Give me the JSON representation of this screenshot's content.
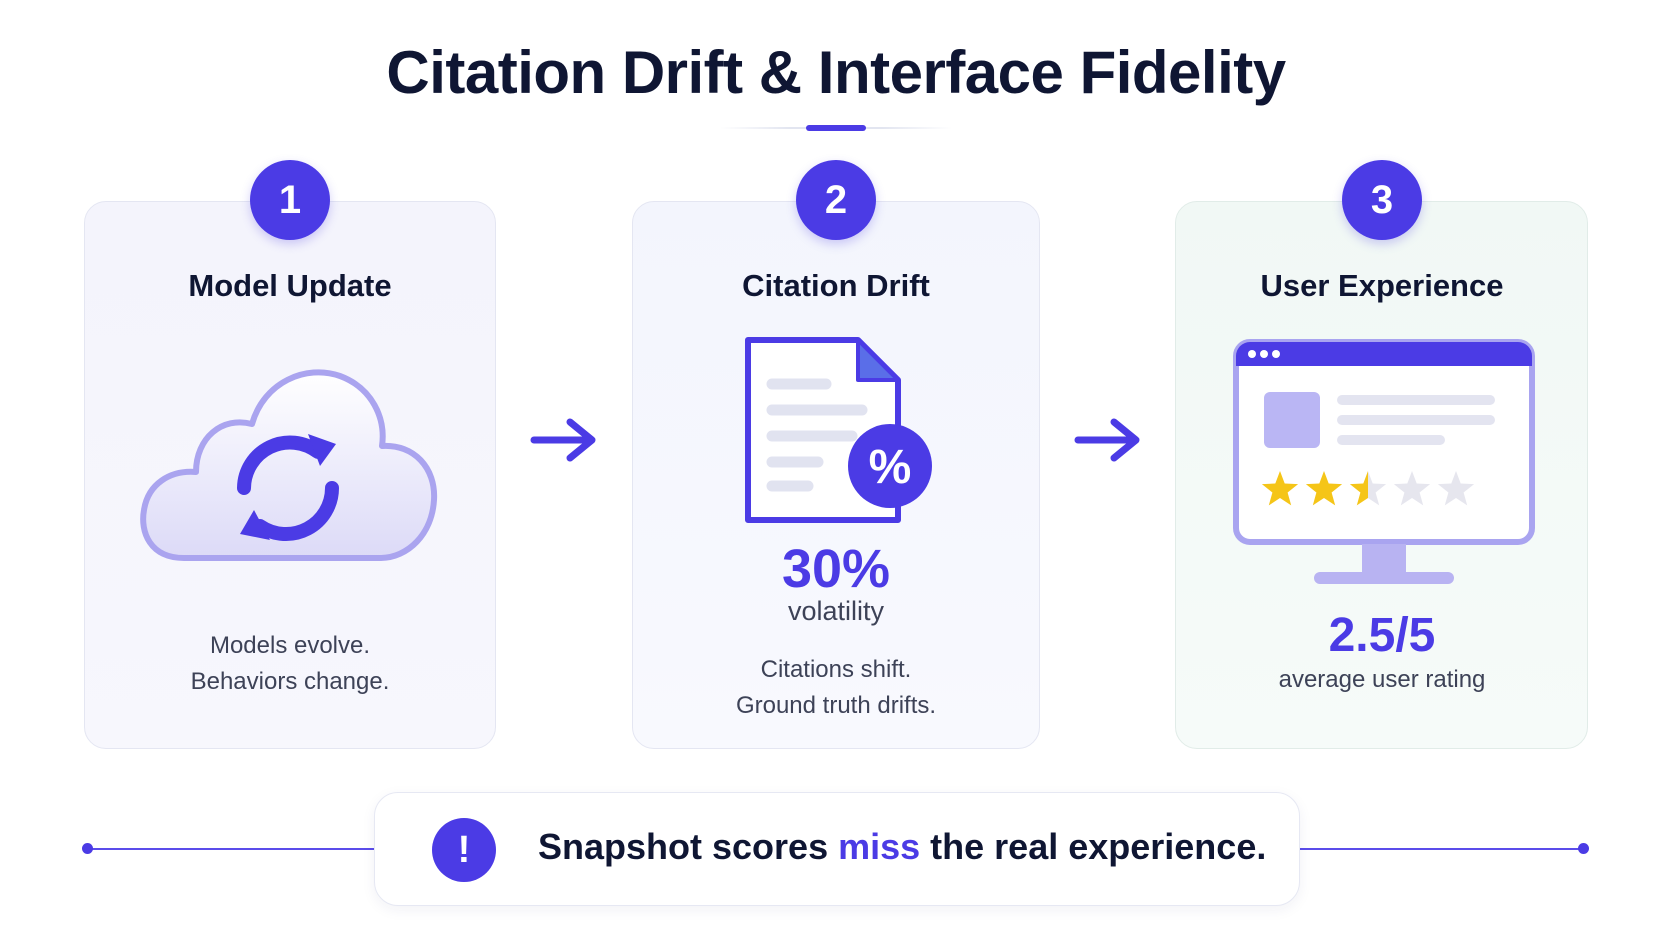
{
  "title": "Citation Drift & Interface Fidelity",
  "steps": [
    {
      "number": "1",
      "title": "Model Update",
      "icon": "cloud-sync-icon",
      "desc_line1": "Models evolve.",
      "desc_line2": "Behaviors change."
    },
    {
      "number": "2",
      "title": "Citation Drift",
      "icon": "document-percent-icon",
      "icon_glyph": "%",
      "metric_value": "30%",
      "metric_label": "volatility",
      "desc_line1": "Citations shift.",
      "desc_line2": "Ground truth drifts."
    },
    {
      "number": "3",
      "title": "User Experience",
      "icon": "monitor-rating-icon",
      "rating": 2.5,
      "rating_max": 5,
      "metric_value": "2.5/5",
      "metric_label": "average user rating"
    }
  ],
  "callout": {
    "icon": "exclamation-icon",
    "icon_glyph": "!",
    "text_before": "Snapshot scores ",
    "text_highlight": "miss",
    "text_after": " the real experience."
  },
  "colors": {
    "accent": "#4b3be5",
    "accent_light": "#a9a4f0",
    "star": "#f5c518",
    "star_empty": "#e6e6ee"
  }
}
